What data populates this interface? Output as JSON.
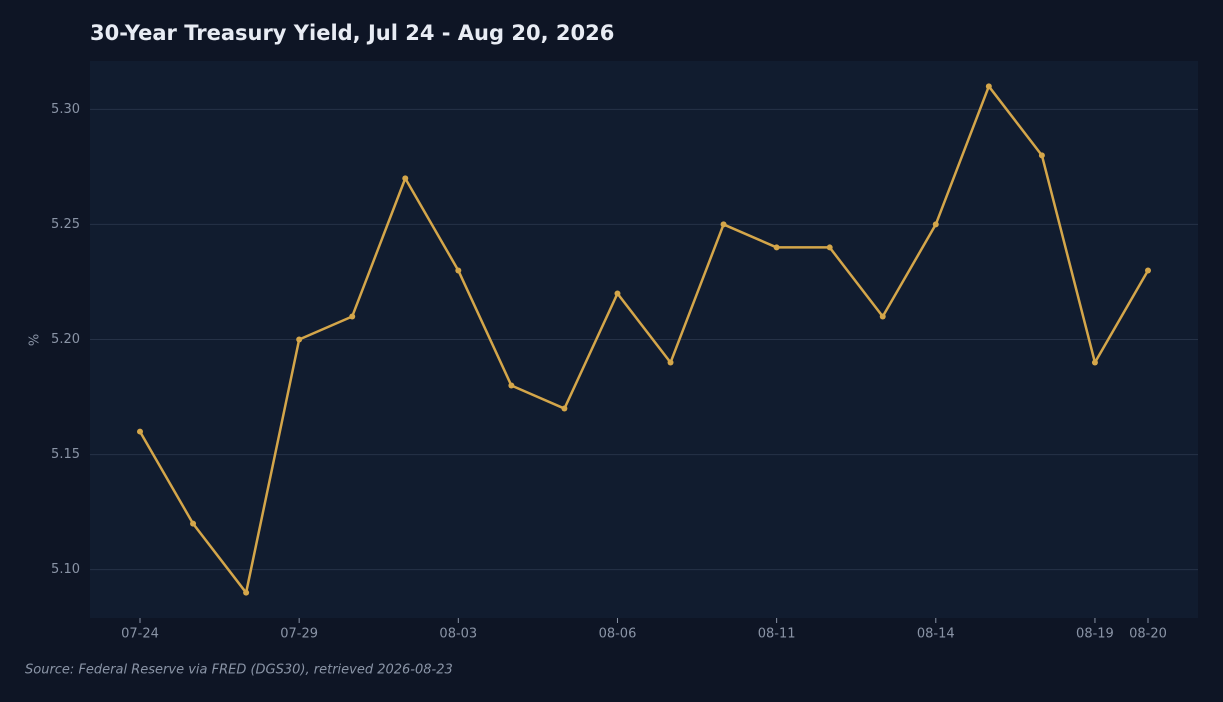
{
  "chart_data": {
    "type": "line",
    "title": "30-Year Treasury Yield, Jul 24 - Aug 20, 2026",
    "y_label": "%",
    "source": "Source: Federal Reserve via FRED (DGS30), retrieved 2026-08-23",
    "categories": [
      "07-24",
      null,
      null,
      "07-29",
      null,
      null,
      "08-03",
      null,
      null,
      "08-06",
      null,
      null,
      "08-11",
      null,
      null,
      "08-14",
      null,
      null,
      "08-19",
      "08-20"
    ],
    "series": [
      {
        "name": "DGS30",
        "color": "#d4a64a",
        "values": [
          5.16,
          5.12,
          5.09,
          5.2,
          5.21,
          5.27,
          5.23,
          5.18,
          5.17,
          5.22,
          5.19,
          5.25,
          5.24,
          5.24,
          5.21,
          5.25,
          5.31,
          5.28,
          5.19,
          5.23
        ]
      }
    ],
    "ylim": [
      5.079,
      5.321
    ],
    "yticks": [
      {
        "value": 5.1,
        "label": "5.10"
      },
      5.15,
      {
        "value": 5.2,
        "label": "5.20"
      },
      5.25,
      {
        "value": 5.3,
        "label": "5.30"
      }
    ],
    "grid": true
  }
}
